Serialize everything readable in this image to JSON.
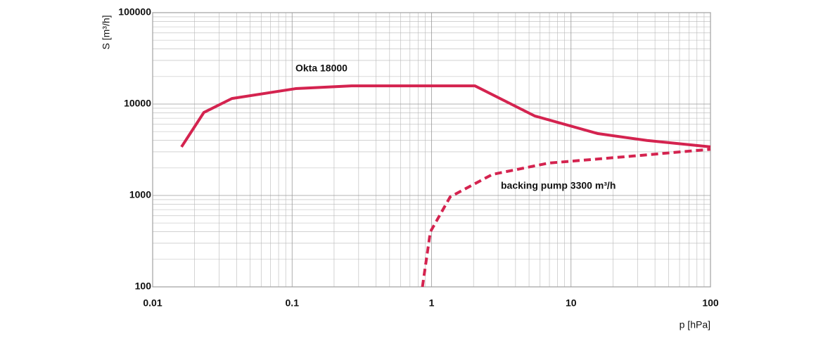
{
  "chart_data": {
    "type": "line",
    "xlabel": "p [hPa]",
    "ylabel": "S [m³/h]",
    "xscale": "log",
    "yscale": "log",
    "xlim": [
      0.01,
      100
    ],
    "ylim": [
      100,
      100000
    ],
    "xticks": [
      0.01,
      0.1,
      1,
      10,
      100
    ],
    "yticks": [
      100,
      1000,
      10000,
      100000
    ],
    "grid": true,
    "minor_grid": true,
    "series": [
      {
        "name": "Okta 18000",
        "color": "#d4234f",
        "dash": false,
        "x": [
          0.0161,
          0.0233,
          0.037,
          0.106,
          0.267,
          2.05,
          5.5,
          15.6,
          35,
          100
        ],
        "values": [
          3400,
          8100,
          11500,
          14750,
          15800,
          15800,
          7400,
          4750,
          4000,
          3400
        ]
      },
      {
        "name": "backing pump 3300 m³/h",
        "color": "#d4234f",
        "dash": true,
        "x": [
          0.86,
          0.98,
          1.36,
          2.73,
          6.9,
          27.9,
          100
        ],
        "values": [
          100,
          400,
          966,
          1700,
          2260,
          2700,
          3200
        ]
      }
    ]
  }
}
